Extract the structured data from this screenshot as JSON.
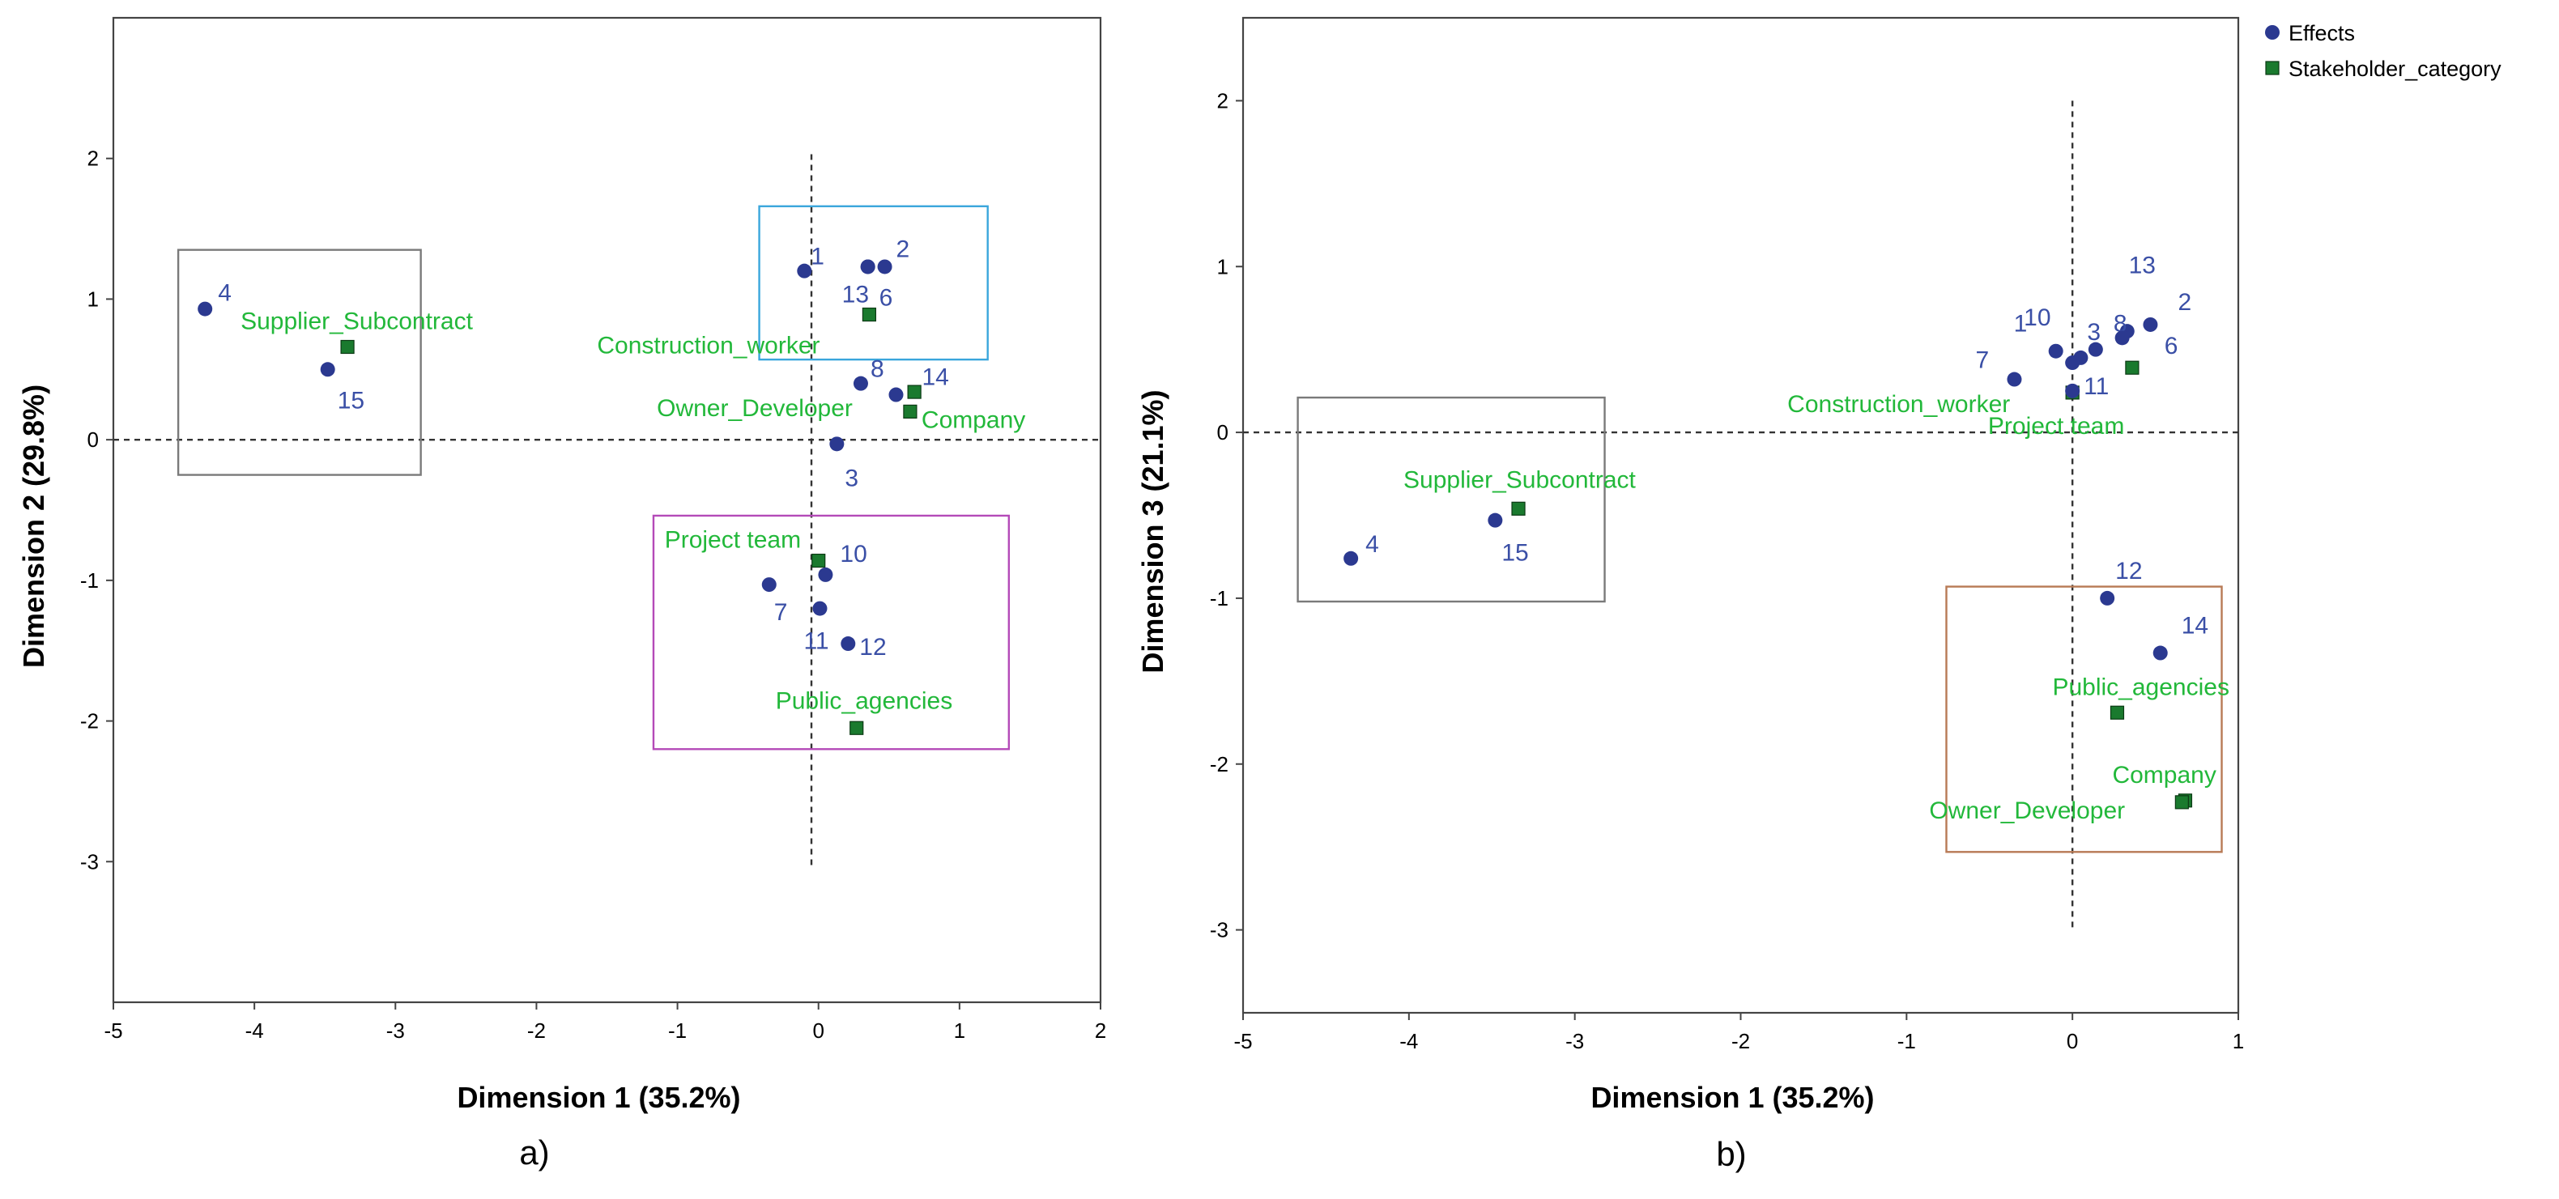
{
  "colors": {
    "effects": "#2b3990",
    "effects_label": "#3a4fa6",
    "stakeholder": "#1a7a2e",
    "stakeholder_label": "#22b83a",
    "frame": "#444444",
    "gray_box": "#7a7a7a",
    "cyan_box": "#3aa6dc",
    "purple_box": "#b44ab8",
    "orange_box": "#b87a55"
  },
  "legend": {
    "effects": "Effects",
    "stakeholder": "Stakeholder_category",
    "effects_icon": "circle-marker-icon",
    "stakeholder_icon": "square-marker-icon"
  },
  "chart_data": [
    {
      "type": "scatter",
      "caption": "a)",
      "xlabel": "Dimension 1 (35.2%)",
      "ylabel": "Dimension 2 (29.8%)",
      "xlim": [
        -5,
        2
      ],
      "ylim": [
        -4,
        3
      ],
      "xticks": [
        -5,
        -4,
        -3,
        -2,
        -1,
        0,
        1,
        2
      ],
      "yticks": [
        -3,
        -2,
        -1,
        0,
        1,
        2
      ],
      "effects": [
        {
          "label": "1",
          "x": -0.1,
          "y": 1.2
        },
        {
          "label": "2",
          "x": 0.47,
          "y": 1.23
        },
        {
          "label": "3",
          "x": 0.13,
          "y": -0.03
        },
        {
          "label": "4",
          "x": -4.35,
          "y": 0.93
        },
        {
          "label": "6",
          "x": 0.35,
          "y": 1.23
        },
        {
          "label": "7",
          "x": -0.35,
          "y": -1.03
        },
        {
          "label": "8",
          "x": 0.3,
          "y": 0.4
        },
        {
          "label": "10",
          "x": 0.05,
          "y": -0.96
        },
        {
          "label": "11",
          "x": 0.01,
          "y": -1.2
        },
        {
          "label": "12",
          "x": 0.21,
          "y": -1.45
        },
        {
          "label": "13",
          "x": 0.35,
          "y": 1.23
        },
        {
          "label": "14",
          "x": 0.55,
          "y": 0.32
        },
        {
          "label": "15",
          "x": -3.48,
          "y": 0.5
        }
      ],
      "stakeholders": [
        {
          "label": "Supplier_Subcontract",
          "x": -3.34,
          "y": 0.66
        },
        {
          "label": "Construction_worker",
          "x": 0.36,
          "y": 0.89
        },
        {
          "label": "Owner_Developer",
          "x": 0.68,
          "y": 0.34
        },
        {
          "label": "Company",
          "x": 0.65,
          "y": 0.2
        },
        {
          "label": "Project team",
          "x": 0.0,
          "y": -0.86
        },
        {
          "label": "Public_agencies",
          "x": 0.27,
          "y": -2.05
        }
      ]
    },
    {
      "type": "scatter",
      "caption": "b)",
      "xlabel": "Dimension 1 (35.2%)",
      "ylabel": "Dimension 3 (21.1%)",
      "xlim": [
        -5,
        1
      ],
      "ylim": [
        -3.5,
        2.5
      ],
      "xticks": [
        -5,
        -4,
        -3,
        -2,
        -1,
        0,
        1
      ],
      "yticks": [
        -3,
        -2,
        -1,
        0,
        1,
        2
      ],
      "effects": [
        {
          "label": "1",
          "x": -0.1,
          "y": 0.49
        },
        {
          "label": "2",
          "x": 0.47,
          "y": 0.65
        },
        {
          "label": "3",
          "x": 0.05,
          "y": 0.45
        },
        {
          "label": "4",
          "x": -4.35,
          "y": -0.76
        },
        {
          "label": "6",
          "x": 0.33,
          "y": 0.61
        },
        {
          "label": "7",
          "x": -0.35,
          "y": 0.32
        },
        {
          "label": "8",
          "x": 0.14,
          "y": 0.5
        },
        {
          "label": "10",
          "x": 0.0,
          "y": 0.42
        },
        {
          "label": "11",
          "x": 0.0,
          "y": 0.25
        },
        {
          "label": "12",
          "x": 0.21,
          "y": -1.0
        },
        {
          "label": "13",
          "x": 0.3,
          "y": 0.57
        },
        {
          "label": "14",
          "x": 0.53,
          "y": -1.33
        },
        {
          "label": "15",
          "x": -3.48,
          "y": -0.53
        }
      ],
      "stakeholders": [
        {
          "label": "Supplier_Subcontract",
          "x": -3.34,
          "y": -0.46
        },
        {
          "label": "Construction_worker",
          "x": 0.0,
          "y": 0.24
        },
        {
          "label": "Project team",
          "x": 0.36,
          "y": 0.39
        },
        {
          "label": "Public_agencies",
          "x": 0.27,
          "y": -1.69
        },
        {
          "label": "Company",
          "x": 0.68,
          "y": -2.22
        },
        {
          "label": "Owner_Developer",
          "x": 0.66,
          "y": -2.23
        }
      ]
    }
  ]
}
